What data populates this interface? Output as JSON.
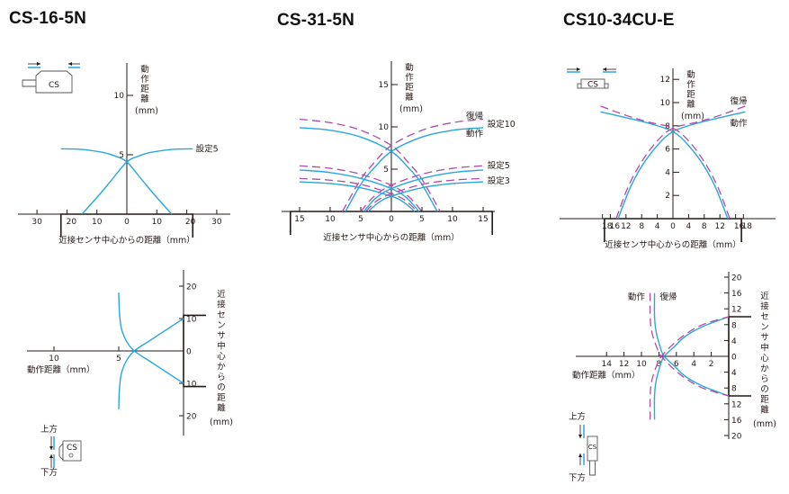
{
  "colors": {
    "operate": "#2aa6de",
    "reset": "#b04aa8",
    "axis": "#231815"
  },
  "chart_data": [
    {
      "id": "cs16",
      "type": "line",
      "title": "CS-16-5N",
      "xlabel": "近接センサ中心からの距離（mm）",
      "ylabel": "動作距離（mm）",
      "ylabel_lines": [
        "動",
        "作",
        "距",
        "離",
        "(mm)"
      ],
      "xlim": [
        -35,
        35
      ],
      "ylim": [
        0,
        13
      ],
      "xticks": [
        -30,
        -20,
        -10,
        0,
        10,
        20,
        30
      ],
      "xtick_labels": [
        "30",
        "20",
        "10",
        "0",
        "10",
        "20",
        "30"
      ],
      "yticks": [
        5,
        10
      ],
      "ytick_labels": [
        "5",
        "10"
      ],
      "sensor_width_mm": 22,
      "series": [
        {
          "name": "設定5 (left)",
          "style": "operate",
          "points": [
            [
              -22,
              5.5
            ],
            [
              -15,
              5.45
            ],
            [
              -8,
              5.2
            ],
            [
              -4,
              4.9
            ],
            [
              0,
              4.4
            ],
            [
              5,
              2.9
            ],
            [
              10,
              1.4
            ],
            [
              15,
              0
            ]
          ]
        },
        {
          "name": "設定5 (right)",
          "style": "operate",
          "points": [
            [
              -15,
              0
            ],
            [
              -10,
              1.4
            ],
            [
              -5,
              2.9
            ],
            [
              0,
              4.4
            ],
            [
              4,
              4.9
            ],
            [
              8,
              5.2
            ],
            [
              15,
              5.45
            ],
            [
              22,
              5.5
            ]
          ]
        }
      ],
      "annotations": [
        {
          "text": "設定5",
          "x": 23,
          "y": 5.5
        }
      ]
    },
    {
      "id": "cs31",
      "type": "line",
      "title": "CS-31-5N",
      "xlabel": "近接センサ中心からの距離（mm）",
      "ylabel": "動作距離（mm）",
      "ylabel_lines": [
        "動",
        "作",
        "距",
        "離",
        "(mm)"
      ],
      "xlim": [
        -16.5,
        16.5
      ],
      "ylim": [
        0,
        18
      ],
      "xticks": [
        -15,
        -10,
        -5,
        0,
        5,
        10,
        15
      ],
      "xtick_labels": [
        "15",
        "10",
        "5",
        "0",
        "5",
        "10",
        "15"
      ],
      "yticks": [
        5,
        10,
        15
      ],
      "ytick_labels": [
        "5",
        "10",
        "15"
      ],
      "sensor_width_mm": 16.5,
      "series": [
        {
          "name": "設定10 動作 L",
          "style": "operate",
          "points": [
            [
              -15,
              9.9
            ],
            [
              -10,
              9.6
            ],
            [
              -5,
              8.8
            ],
            [
              0,
              7.1
            ],
            [
              3,
              5
            ],
            [
              5,
              3.2
            ],
            [
              7.5,
              0
            ]
          ]
        },
        {
          "name": "設定10 動作 R",
          "style": "operate",
          "points": [
            [
              -7.5,
              0
            ],
            [
              -5,
              3.2
            ],
            [
              -3,
              5
            ],
            [
              0,
              7.1
            ],
            [
              5,
              8.8
            ],
            [
              10,
              9.6
            ],
            [
              15,
              9.9
            ]
          ]
        },
        {
          "name": "設定10 復帰 L",
          "style": "reset",
          "points": [
            [
              -15,
              10.9
            ],
            [
              -10,
              10.5
            ],
            [
              -5,
              9.6
            ],
            [
              0,
              7.8
            ],
            [
              3,
              5.6
            ],
            [
              5,
              3.8
            ],
            [
              8,
              0
            ]
          ]
        },
        {
          "name": "設定10 復帰 R",
          "style": "reset",
          "points": [
            [
              -8,
              0
            ],
            [
              -5,
              3.8
            ],
            [
              -3,
              5.6
            ],
            [
              0,
              7.8
            ],
            [
              5,
              9.6
            ],
            [
              10,
              10.5
            ],
            [
              15,
              10.9
            ]
          ]
        },
        {
          "name": "設定5 動作 L",
          "style": "operate",
          "points": [
            [
              -15,
              4.9
            ],
            [
              -10,
              4.6
            ],
            [
              -5,
              3.9
            ],
            [
              0,
              2.7
            ],
            [
              2.5,
              1.6
            ],
            [
              4.5,
              0
            ]
          ]
        },
        {
          "name": "設定5 動作 R",
          "style": "operate",
          "points": [
            [
              -4.5,
              0
            ],
            [
              -2.5,
              1.6
            ],
            [
              0,
              2.7
            ],
            [
              5,
              3.9
            ],
            [
              10,
              4.6
            ],
            [
              15,
              4.9
            ]
          ]
        },
        {
          "name": "設定5 復帰 L",
          "style": "reset",
          "points": [
            [
              -15,
              5.4
            ],
            [
              -10,
              5.1
            ],
            [
              -5,
              4.4
            ],
            [
              0,
              3.1
            ],
            [
              2.8,
              1.8
            ],
            [
              5,
              0
            ]
          ]
        },
        {
          "name": "設定5 復帰 R",
          "style": "reset",
          "points": [
            [
              -5,
              0
            ],
            [
              -2.8,
              1.8
            ],
            [
              0,
              3.1
            ],
            [
              5,
              4.4
            ],
            [
              10,
              5.1
            ],
            [
              15,
              5.4
            ]
          ]
        },
        {
          "name": "設定3 動作 L",
          "style": "operate",
          "points": [
            [
              -15,
              3.5
            ],
            [
              -10,
              3.3
            ],
            [
              -5,
              2.8
            ],
            [
              0,
              1.8
            ],
            [
              2,
              1.1
            ],
            [
              3.8,
              0
            ]
          ]
        },
        {
          "name": "設定3 動作 R",
          "style": "operate",
          "points": [
            [
              -3.8,
              0
            ],
            [
              -2,
              1.1
            ],
            [
              0,
              1.8
            ],
            [
              5,
              2.8
            ],
            [
              10,
              3.3
            ],
            [
              15,
              3.5
            ]
          ]
        },
        {
          "name": "設定3 復帰 L",
          "style": "reset",
          "points": [
            [
              -15,
              3.9
            ],
            [
              -10,
              3.7
            ],
            [
              -5,
              3.2
            ],
            [
              0,
              2.1
            ],
            [
              2.3,
              1.3
            ],
            [
              4.2,
              0
            ]
          ]
        },
        {
          "name": "設定3 復帰 R",
          "style": "reset",
          "points": [
            [
              -4.2,
              0
            ],
            [
              -2.3,
              1.3
            ],
            [
              0,
              2.1
            ],
            [
              5,
              3.2
            ],
            [
              10,
              3.7
            ],
            [
              15,
              3.9
            ]
          ]
        }
      ],
      "annotations": [
        {
          "text": "復帰",
          "x": 12.2,
          "y": 11.3
        },
        {
          "text": "設定10",
          "x": 15.7,
          "y": 10.3
        },
        {
          "text": "動作",
          "x": 12.2,
          "y": 9.2
        },
        {
          "text": "設定5",
          "x": 15.7,
          "y": 5.4
        },
        {
          "text": "設定3",
          "x": 15.7,
          "y": 3.6
        }
      ]
    },
    {
      "id": "cs10",
      "type": "line",
      "title": "CS10-34CU-E",
      "xlabel": "近接センサ中心からの距離（mm）",
      "ylabel": "動作距離（mm）",
      "ylabel_lines": [
        "動",
        "作",
        "距",
        "離",
        "(mm)"
      ],
      "xlim": [
        -21.5,
        21.5
      ],
      "ylim": [
        0,
        12.7
      ],
      "xticks": [
        -18,
        -16,
        -12,
        -8,
        -4,
        0,
        4,
        8,
        12,
        16,
        18
      ],
      "xtick_labels": [
        "18",
        "16",
        "12",
        "8",
        "4",
        "0",
        "4",
        "8",
        "12",
        "16",
        "18"
      ],
      "yticks": [
        2,
        4,
        6,
        8,
        10,
        12
      ],
      "ytick_labels": [
        "2",
        "4",
        "6",
        "8",
        "10",
        "12"
      ],
      "sensor_width_mm": 17.5,
      "series": [
        {
          "name": "動作 L",
          "style": "operate",
          "points": [
            [
              -18.5,
              9.2
            ],
            [
              -12,
              8.7
            ],
            [
              -6,
              8.2
            ],
            [
              0,
              7.5
            ],
            [
              4,
              6.3
            ],
            [
              8,
              4.5
            ],
            [
              11,
              2.6
            ],
            [
              14,
              0
            ]
          ]
        },
        {
          "name": "動作 R",
          "style": "operate",
          "points": [
            [
              -14,
              0
            ],
            [
              -11,
              2.6
            ],
            [
              -8,
              4.5
            ],
            [
              -4,
              6.3
            ],
            [
              0,
              7.5
            ],
            [
              6,
              8.2
            ],
            [
              12,
              8.7
            ],
            [
              18.5,
              9.2
            ]
          ]
        },
        {
          "name": "復帰 L",
          "style": "reset",
          "points": [
            [
              -18.5,
              9.7
            ],
            [
              -12,
              8.9
            ],
            [
              -6,
              8.3
            ],
            [
              0,
              7.8
            ],
            [
              4,
              6.7
            ],
            [
              8,
              4.9
            ],
            [
              11.5,
              2.7
            ],
            [
              14.5,
              0
            ]
          ]
        },
        {
          "name": "復帰 R",
          "style": "reset",
          "points": [
            [
              -14.5,
              0
            ],
            [
              -11.5,
              2.7
            ],
            [
              -8,
              4.9
            ],
            [
              -4,
              6.7
            ],
            [
              0,
              7.8
            ],
            [
              6,
              8.3
            ],
            [
              12,
              8.9
            ],
            [
              18.5,
              9.7
            ]
          ]
        }
      ],
      "annotations": [
        {
          "text": "復帰",
          "x": 14.6,
          "y": 10.1
        },
        {
          "text": "動作",
          "x": 14.6,
          "y": 8.2
        }
      ]
    },
    {
      "id": "cs16v",
      "type": "line",
      "orientation": "horizontal",
      "xlabel": "動作距離（mm）",
      "ylabel": "近接センサ中心からの距離（mm）",
      "ylabel_lines": [
        "近",
        "接",
        "セ",
        "ン",
        "サ",
        "中",
        "心",
        "か",
        "ら",
        "の",
        "距",
        "離",
        "(mm)"
      ],
      "xlim": [
        12,
        0
      ],
      "ylim": [
        -25,
        25
      ],
      "xticks": [
        5,
        10
      ],
      "xtick_labels": [
        "5",
        "10"
      ],
      "yticks": [
        20,
        10,
        0,
        -10,
        -20
      ],
      "ytick_labels": [
        "20",
        "10",
        "0",
        "10",
        "20"
      ],
      "sensor_half_height_mm": 11,
      "series": [
        {
          "name": "upper",
          "style": "operate",
          "points": [
            [
              5.0,
              18
            ],
            [
              4.95,
              12
            ],
            [
              4.8,
              7
            ],
            [
              4.4,
              3
            ],
            [
              3.8,
              0
            ],
            [
              2.6,
              -3.2
            ],
            [
              1.3,
              -6.6
            ],
            [
              0,
              -10
            ]
          ]
        },
        {
          "name": "lower",
          "style": "operate",
          "points": [
            [
              5.0,
              -18
            ],
            [
              4.95,
              -12
            ],
            [
              4.8,
              -7
            ],
            [
              4.4,
              -3
            ],
            [
              3.8,
              0
            ],
            [
              2.6,
              3.2
            ],
            [
              1.3,
              6.6
            ],
            [
              0,
              10
            ]
          ]
        }
      ]
    },
    {
      "id": "cs10v",
      "type": "line",
      "orientation": "horizontal",
      "xlabel": "動作距離（mm）",
      "ylabel": "近接センサ中心からの距離（mm）",
      "ylabel_lines": [
        "近",
        "接",
        "セ",
        "ン",
        "サ",
        "中",
        "心",
        "か",
        "ら",
        "の",
        "距",
        "離",
        "(mm)"
      ],
      "xlim": [
        20,
        0
      ],
      "ylim": [
        -20,
        20
      ],
      "xticks": [
        14,
        12,
        10,
        8,
        6,
        4,
        2
      ],
      "xtick_labels": [
        "14",
        "12",
        "10",
        "8",
        "6",
        "4",
        "2"
      ],
      "yticks": [
        20,
        16,
        12,
        8,
        4,
        0,
        -4,
        -8,
        -12,
        -16,
        -20
      ],
      "ytick_labels": [
        "20",
        "16",
        "12",
        "8",
        "4",
        "0",
        "4",
        "8",
        "12",
        "16",
        "20"
      ],
      "sensor_half_height_mm": 10,
      "series": [
        {
          "name": "動作 upper",
          "style": "operate",
          "points": [
            [
              8.5,
              16
            ],
            [
              8.5,
              10
            ],
            [
              8.3,
              6
            ],
            [
              7.8,
              2
            ],
            [
              7.4,
              0
            ],
            [
              6.2,
              -2.5
            ],
            [
              5,
              -5
            ],
            [
              3,
              -7.5
            ],
            [
              0,
              -10
            ]
          ]
        },
        {
          "name": "動作 lower",
          "style": "operate",
          "points": [
            [
              8.5,
              -16
            ],
            [
              8.5,
              -10
            ],
            [
              8.3,
              -6
            ],
            [
              7.8,
              -2
            ],
            [
              7.4,
              0
            ],
            [
              6.2,
              2.5
            ],
            [
              5,
              5
            ],
            [
              3,
              7.5
            ],
            [
              0,
              10
            ]
          ]
        },
        {
          "name": "復帰 upper",
          "style": "reset",
          "points": [
            [
              9.0,
              16
            ],
            [
              9.0,
              10
            ],
            [
              8.8,
              6
            ],
            [
              8.2,
              2
            ],
            [
              7.7,
              0
            ],
            [
              6.5,
              -2.8
            ],
            [
              5,
              -5.5
            ],
            [
              3,
              -8
            ],
            [
              0,
              -10
            ]
          ]
        },
        {
          "name": "復帰 lower",
          "style": "reset",
          "points": [
            [
              9.0,
              -16
            ],
            [
              9.0,
              -10
            ],
            [
              8.8,
              -6
            ],
            [
              8.2,
              -2
            ],
            [
              7.7,
              0
            ],
            [
              6.5,
              2.8
            ],
            [
              5,
              5.5
            ],
            [
              3,
              8
            ],
            [
              0,
              10
            ]
          ]
        }
      ],
      "annotations": [
        {
          "text": "動作",
          "x": 9.6,
          "y": 15
        },
        {
          "text": "復帰",
          "x": 7.9,
          "y": 15
        }
      ]
    }
  ],
  "diagrams": {
    "sensor_label": "CS",
    "upper_label": "上方",
    "lower_label": "下方"
  }
}
